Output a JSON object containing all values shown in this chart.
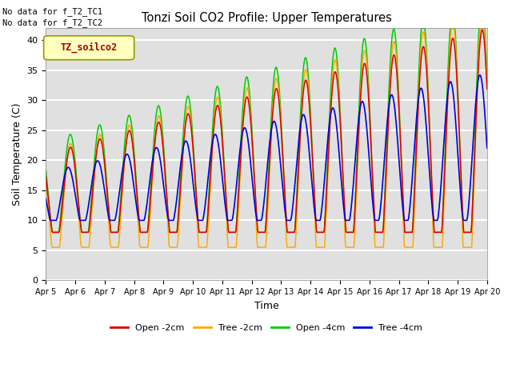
{
  "title": "Tonzi Soil CO2 Profile: Upper Temperatures",
  "xlabel": "Time",
  "ylabel": "Soil Temperature (C)",
  "ylim": [
    0,
    42
  ],
  "background_color": "#e0e0e0",
  "grid_color": "white",
  "no_data_text": [
    "No data for f_T2_TC1",
    "No data for f_T2_TC2"
  ],
  "legend_box_label": "TZ_soilco2",
  "series_labels": [
    "Open -2cm",
    "Tree -2cm",
    "Open -4cm",
    "Tree -4cm"
  ],
  "series_colors": [
    "#dd0000",
    "#ffaa00",
    "#00cc00",
    "#0000dd"
  ],
  "xtick_labels": [
    "Apr 5",
    "Apr 6",
    "Apr 7",
    "Apr 8",
    "Apr 9",
    "Apr 10",
    "Apr 11",
    "Apr 12",
    "Apr 13",
    "Apr 14",
    "Apr 15",
    "Apr 16",
    "Apr 17",
    "Apr 18",
    "Apr 19",
    "Apr 20"
  ],
  "n_points": 720,
  "days": 15
}
